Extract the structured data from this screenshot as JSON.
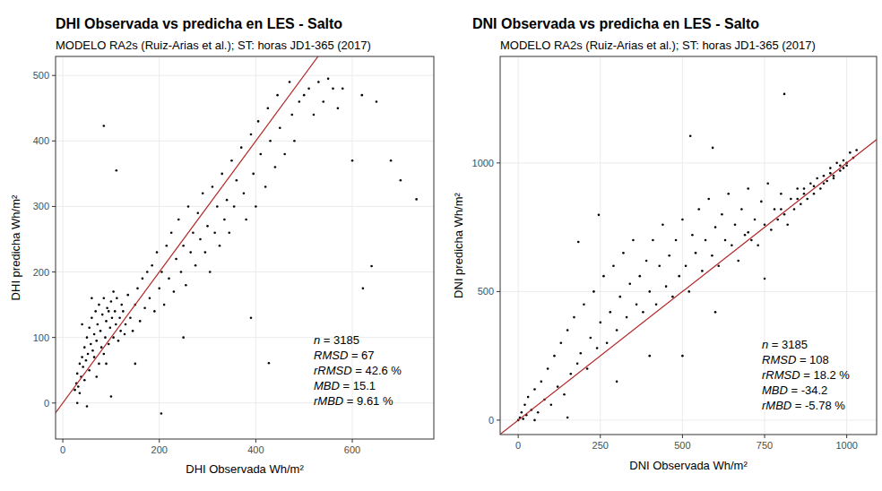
{
  "chart_data": [
    {
      "type": "scatter",
      "title": "DHI Observada vs predicha en LES - Salto",
      "subtitle": "MODELO RA2s (Ruiz-Arias et al.); ST: horas JD1-365 (2017)",
      "x_label": "DHI Observada Wh/m²",
      "y_label": "DHI predicha Wh/m²",
      "color": "#000000",
      "marker": "circle",
      "grid": true,
      "xlim": [
        -15,
        769
      ],
      "ylim": [
        -55,
        529
      ],
      "xticks": [
        0,
        200,
        400,
        600
      ],
      "yticks": [
        0,
        100,
        200,
        300,
        400,
        500
      ],
      "annotations": [
        "n = 3185",
        "RMSD = 67",
        "rRMSD = 42.6 %",
        "MBD = 15.1",
        "rMBD = 9.61 %"
      ],
      "x": [
        25,
        28,
        30,
        32,
        35,
        38,
        40,
        42,
        45,
        48,
        50,
        52,
        55,
        58,
        60,
        62,
        65,
        68,
        70,
        72,
        75,
        78,
        80,
        82,
        85,
        88,
        90,
        92,
        95,
        98,
        100,
        102,
        105,
        108,
        110,
        112,
        115,
        118,
        120,
        122,
        125,
        128,
        130,
        135,
        140,
        145,
        150,
        155,
        160,
        165,
        170,
        175,
        180,
        185,
        190,
        195,
        200,
        205,
        210,
        215,
        220,
        225,
        230,
        235,
        240,
        245,
        250,
        255,
        260,
        265,
        270,
        275,
        280,
        285,
        290,
        295,
        300,
        305,
        310,
        315,
        320,
        325,
        330,
        335,
        340,
        345,
        350,
        355,
        360,
        370,
        375,
        380,
        390,
        395,
        400,
        405,
        410,
        420,
        425,
        430,
        440,
        445,
        450,
        460,
        470,
        475,
        480,
        490,
        500,
        510,
        520,
        530,
        540,
        550,
        560,
        570,
        580,
        600,
        620,
        640,
        622,
        650,
        680,
        700,
        733,
        85,
        111,
        204,
        30,
        50,
        100,
        150,
        250,
        427,
        390,
        60,
        40,
        45,
        55,
        65,
        75,
        85,
        95,
        105,
        70,
        35,
        90
      ],
      "values": [
        20,
        30,
        45,
        25,
        60,
        40,
        70,
        55,
        85,
        65,
        100,
        75,
        115,
        90,
        130,
        80,
        105,
        140,
        95,
        120,
        150,
        110,
        85,
        135,
        160,
        100,
        125,
        145,
        90,
        115,
        155,
        130,
        100,
        140,
        120,
        160,
        95,
        130,
        110,
        150,
        140,
        105,
        120,
        165,
        130,
        110,
        150,
        175,
        125,
        190,
        145,
        200,
        160,
        210,
        140,
        230,
        175,
        200,
        150,
        240,
        190,
        260,
        170,
        220,
        280,
        200,
        240,
        180,
        300,
        230,
        260,
        210,
        290,
        250,
        320,
        230,
        270,
        200,
        330,
        260,
        300,
        240,
        350,
        280,
        310,
        260,
        370,
        300,
        340,
        390,
        320,
        280,
        410,
        350,
        300,
        430,
        380,
        330,
        450,
        400,
        360,
        470,
        420,
        380,
        490,
        440,
        400,
        460,
        470,
        480,
        440,
        490,
        460,
        495,
        480,
        450,
        480,
        370,
        470,
        209,
        175,
        460,
        370,
        340,
        311,
        423,
        355,
        -16,
        0,
        -5,
        10,
        60,
        100,
        61,
        130,
        160,
        120,
        35,
        50,
        70,
        60,
        75,
        140,
        170,
        40,
        15,
        60
      ]
    },
    {
      "type": "scatter",
      "title": "DNI Observada vs predicha en LES - Salto",
      "subtitle": "MODELO RA2s (Ruiz-Arias et al.); ST: horas JD1-365 (2017)",
      "x_label": "DNI Observada Wh/m²",
      "y_label": "DNI predicha Wh/m²",
      "color": "#000000",
      "marker": "circle",
      "grid": true,
      "xlim": [
        -55,
        1091
      ],
      "ylim": [
        -56,
        1414
      ],
      "xticks": [
        0,
        250,
        500,
        750,
        1000
      ],
      "yticks": [
        0,
        500,
        1000
      ],
      "annotations": [
        "n = 3185",
        "RMSD = 108",
        "rRMSD = 18.2 %",
        "MBD = -34.2",
        "rMBD = -5.78 %"
      ],
      "x": [
        0,
        5,
        10,
        15,
        20,
        25,
        30,
        40,
        50,
        60,
        70,
        80,
        90,
        100,
        110,
        120,
        130,
        140,
        150,
        160,
        170,
        180,
        190,
        200,
        210,
        220,
        230,
        240,
        250,
        260,
        270,
        280,
        290,
        300,
        310,
        320,
        330,
        340,
        350,
        360,
        370,
        380,
        390,
        400,
        410,
        420,
        430,
        440,
        450,
        460,
        470,
        480,
        490,
        500,
        510,
        520,
        530,
        540,
        550,
        560,
        570,
        580,
        590,
        600,
        610,
        620,
        630,
        640,
        650,
        660,
        670,
        680,
        690,
        700,
        710,
        720,
        730,
        740,
        750,
        760,
        770,
        780,
        790,
        800,
        810,
        820,
        830,
        840,
        850,
        860,
        870,
        880,
        890,
        900,
        910,
        920,
        930,
        940,
        950,
        960,
        970,
        980,
        990,
        1000,
        1010,
        1020,
        1030,
        810,
        524,
        592,
        245,
        183,
        300,
        500,
        600,
        750,
        150,
        50,
        400,
        850,
        900,
        950,
        980,
        700,
        800,
        870,
        930,
        960,
        990,
        1000
      ],
      "values": [
        0,
        10,
        30,
        5,
        60,
        20,
        90,
        40,
        120,
        30,
        150,
        80,
        200,
        60,
        250,
        130,
        300,
        100,
        350,
        180,
        400,
        220,
        260,
        450,
        200,
        320,
        500,
        280,
        380,
        560,
        300,
        420,
        600,
        350,
        480,
        650,
        400,
        530,
        700,
        450,
        560,
        420,
        620,
        500,
        700,
        450,
        600,
        760,
        520,
        640,
        480,
        700,
        560,
        780,
        600,
        500,
        720,
        650,
        820,
        580,
        700,
        860,
        640,
        750,
        600,
        800,
        700,
        880,
        680,
        760,
        620,
        820,
        720,
        900,
        700,
        780,
        680,
        850,
        760,
        920,
        740,
        820,
        780,
        880,
        800,
        760,
        860,
        820,
        900,
        840,
        880,
        860,
        920,
        880,
        940,
        900,
        950,
        930,
        980,
        950,
        1000,
        990,
        1010,
        1000,
        1040,
        1020,
        1050,
        1268,
        1105,
        1059,
        798,
        693,
        150,
        250,
        420,
        550,
        10,
        0,
        250,
        860,
        910,
        960,
        970,
        730,
        820,
        900,
        920,
        940,
        980,
        990
      ]
    }
  ]
}
